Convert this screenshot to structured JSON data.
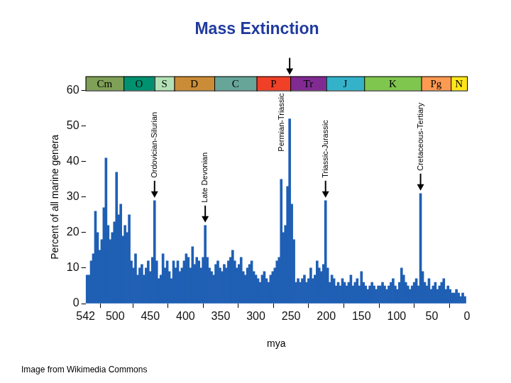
{
  "chart_data": {
    "type": "bar",
    "title": "Mass Extinction",
    "x_label": "mya",
    "y_label": "Percent of all marine genera",
    "x": [
      540,
      537,
      534,
      531,
      528,
      525,
      522,
      519,
      516,
      513,
      510,
      507,
      504,
      501,
      498,
      495,
      492,
      489,
      486,
      483,
      480,
      477,
      474,
      471,
      468,
      465,
      462,
      459,
      456,
      453,
      450,
      447,
      444,
      441,
      438,
      435,
      432,
      429,
      426,
      423,
      420,
      417,
      414,
      411,
      408,
      405,
      402,
      399,
      396,
      393,
      390,
      387,
      384,
      381,
      378,
      375,
      372,
      369,
      366,
      363,
      360,
      357,
      354,
      351,
      348,
      345,
      342,
      339,
      336,
      333,
      330,
      327,
      324,
      321,
      318,
      315,
      312,
      309,
      306,
      303,
      300,
      297,
      294,
      291,
      288,
      285,
      282,
      279,
      276,
      273,
      270,
      267,
      264,
      261,
      258,
      255,
      252,
      249,
      246,
      243,
      240,
      237,
      234,
      231,
      228,
      225,
      222,
      219,
      216,
      213,
      210,
      207,
      204,
      201,
      198,
      195,
      192,
      189,
      186,
      183,
      180,
      177,
      174,
      171,
      168,
      165,
      162,
      159,
      156,
      153,
      150,
      147,
      144,
      141,
      138,
      135,
      132,
      129,
      126,
      123,
      120,
      117,
      114,
      111,
      108,
      105,
      102,
      99,
      96,
      93,
      90,
      87,
      84,
      81,
      78,
      75,
      72,
      69,
      66,
      63,
      60,
      57,
      54,
      51,
      48,
      45,
      42,
      39,
      36,
      33,
      30,
      27,
      24,
      21,
      18,
      15,
      12,
      9,
      6,
      3
    ],
    "values": [
      8,
      8,
      12,
      14,
      26,
      20,
      15,
      18,
      27,
      41,
      22,
      18,
      20,
      23,
      37,
      25,
      28,
      19,
      22,
      20,
      25,
      12,
      10,
      14,
      8,
      10,
      11,
      8,
      10,
      12,
      9,
      13,
      29,
      12,
      7,
      8,
      14,
      10,
      12,
      9,
      7,
      12,
      10,
      12,
      9,
      10,
      12,
      14,
      13,
      10,
      16,
      11,
      13,
      12,
      10,
      13,
      22,
      13,
      10,
      9,
      8,
      11,
      12,
      10,
      9,
      11,
      10,
      12,
      13,
      15,
      12,
      10,
      11,
      13,
      9,
      8,
      10,
      11,
      12,
      9,
      8,
      7,
      6,
      8,
      9,
      7,
      6,
      8,
      9,
      10,
      12,
      13,
      35,
      20,
      22,
      33,
      52,
      28,
      18,
      6,
      7,
      6,
      7,
      8,
      6,
      7,
      10,
      7,
      8,
      12,
      10,
      9,
      11,
      29,
      10,
      6,
      8,
      7,
      5,
      6,
      5,
      7,
      6,
      5,
      6,
      8,
      5,
      6,
      7,
      5,
      9,
      6,
      5,
      4,
      5,
      6,
      5,
      4,
      5,
      5,
      6,
      5,
      4,
      5,
      6,
      7,
      5,
      4,
      6,
      10,
      8,
      6,
      5,
      4,
      5,
      6,
      7,
      5,
      31,
      9,
      6,
      5,
      7,
      4,
      5,
      6,
      4,
      5,
      6,
      7,
      4,
      5,
      4,
      3,
      3,
      4,
      3,
      2,
      3,
      2
    ],
    "color": "#1f5fb4",
    "xlim": [
      542,
      0
    ],
    "xticks": [
      542,
      500,
      450,
      400,
      350,
      300,
      250,
      200,
      150,
      100,
      50,
      0
    ],
    "ylim": [
      0,
      60
    ],
    "yticks": [
      0,
      10,
      20,
      30,
      40,
      50,
      60
    ],
    "grid": false,
    "periods": [
      {
        "label": "Cm",
        "start": 542,
        "end": 488,
        "color": "#7fa056"
      },
      {
        "label": "O",
        "start": 488,
        "end": 444,
        "color": "#009270"
      },
      {
        "label": "S",
        "start": 444,
        "end": 416,
        "color": "#b3e1b6"
      },
      {
        "label": "D",
        "start": 416,
        "end": 359,
        "color": "#cb8c37"
      },
      {
        "label": "C",
        "start": 359,
        "end": 299,
        "color": "#67a599"
      },
      {
        "label": "P",
        "start": 299,
        "end": 251,
        "color": "#f04028"
      },
      {
        "label": "Tr",
        "start": 251,
        "end": 200,
        "color": "#812b92"
      },
      {
        "label": "J",
        "start": 200,
        "end": 146,
        "color": "#34b2c9"
      },
      {
        "label": "K",
        "start": 146,
        "end": 65,
        "color": "#7fc64e"
      },
      {
        "label": "Pg",
        "start": 65,
        "end": 23,
        "color": "#fd9a52"
      },
      {
        "label": "N",
        "start": 23,
        "end": 0,
        "color": "#ffe619"
      }
    ],
    "annotations": [
      {
        "text": "Ordovician-Silurian",
        "x": 444
      },
      {
        "text": "Late Devonian",
        "x": 372
      },
      {
        "text": "Permian-Triassic",
        "x": 252
      },
      {
        "text": "Triassic-Jurassic",
        "x": 201
      },
      {
        "text": "Cretaceous-Tertiary",
        "x": 66
      }
    ],
    "source": "Image from Wikimedia Commons"
  }
}
